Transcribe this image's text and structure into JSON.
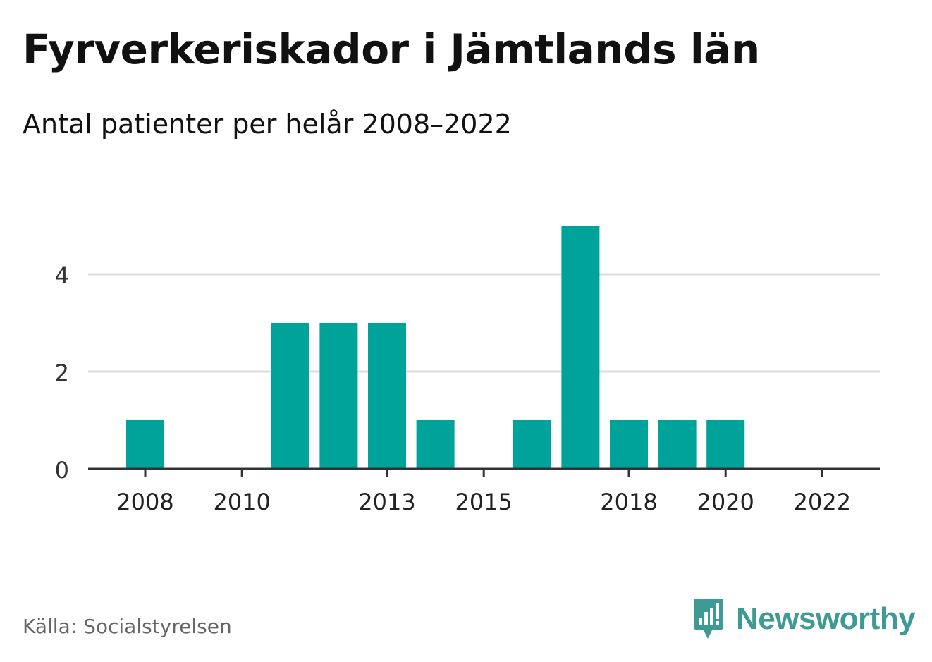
{
  "title": "Fyrverkeriskador i Jämtlands län",
  "subtitle": "Antal patienter per helår 2008–2022",
  "source": "Källa: Socialstyrelsen",
  "brand": {
    "name": "Newsworthy",
    "icon": "newsworthy-logo-icon",
    "color": "#3d9a95"
  },
  "chart_data": {
    "type": "bar",
    "categories": [
      "2008",
      "2009",
      "2010",
      "2011",
      "2012",
      "2013",
      "2014",
      "2015",
      "2016",
      "2017",
      "2018",
      "2019",
      "2020",
      "2021",
      "2022"
    ],
    "values": [
      1,
      0,
      0,
      3,
      3,
      3,
      1,
      0,
      1,
      5,
      1,
      1,
      1,
      0,
      0
    ],
    "x_tick_labels": [
      "2008",
      "2010",
      "2013",
      "2015",
      "2018",
      "2020",
      "2022"
    ],
    "y_ticks": [
      0,
      2,
      4
    ],
    "ylim": [
      0,
      5
    ],
    "xlabel": "",
    "ylabel": "",
    "grid": true,
    "colors": {
      "bar": "#00a399",
      "grid": "#dddddd",
      "axis": "#333333"
    }
  }
}
